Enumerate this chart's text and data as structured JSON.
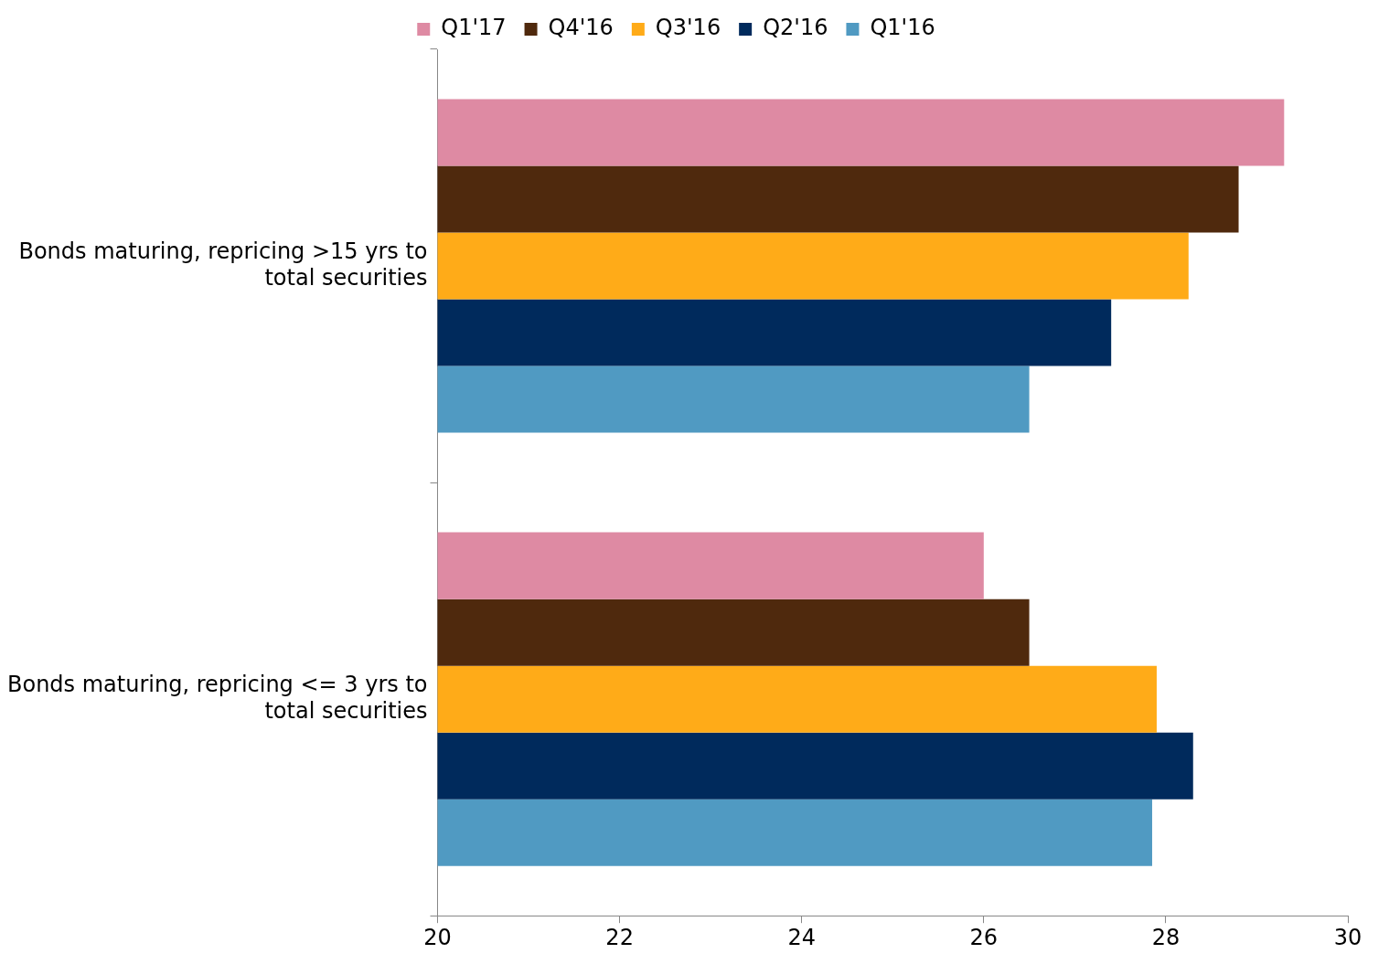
{
  "chart_data": {
    "type": "bar",
    "orientation": "horizontal",
    "categories": [
      "Bonds maturing, repricing >15 yrs to total securities",
      "Bonds maturing, repricing <= 3 yrs to total securities"
    ],
    "series": [
      {
        "name": "Q1'17",
        "color": "#de8aa3",
        "values": [
          29.3,
          26.0
        ]
      },
      {
        "name": "Q4'16",
        "color": "#4f290d",
        "values": [
          28.8,
          26.5
        ]
      },
      {
        "name": "Q3'16",
        "color": "#ffab18",
        "values": [
          28.25,
          27.9
        ]
      },
      {
        "name": "Q2'16",
        "color": "#002a5c",
        "values": [
          27.4,
          28.3
        ]
      },
      {
        "name": "Q1'16",
        "color": "#509ac2",
        "values": [
          26.5,
          27.85
        ]
      }
    ],
    "xlim": [
      20,
      30
    ],
    "xticks": [
      20,
      22,
      24,
      26,
      28,
      30
    ],
    "grid": false,
    "legend": "top"
  }
}
